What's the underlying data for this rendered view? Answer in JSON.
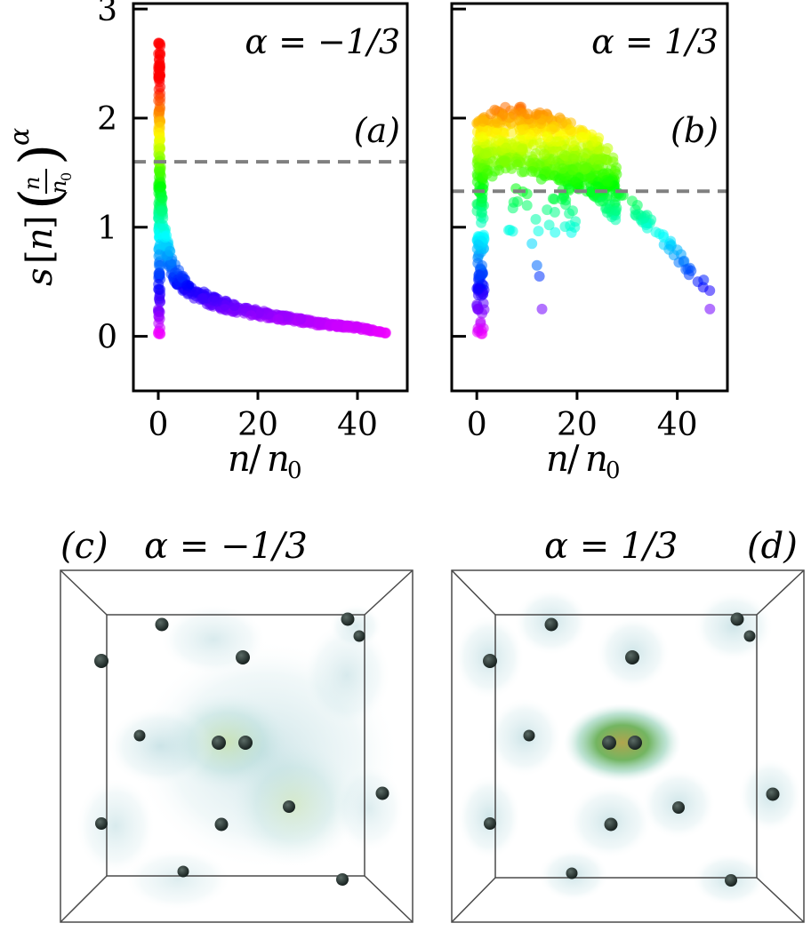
{
  "chart_data": [
    {
      "type": "scatter",
      "panel": "(a)",
      "title": "α = −1/3",
      "alpha": "-1/3",
      "xlabel": "n/n0",
      "ylabel": "s[n] (n/n0)^α",
      "xlim": [
        -5,
        50
      ],
      "ylim": [
        -0.5,
        3.05
      ],
      "xticks": [
        "0",
        "20",
        "40"
      ],
      "xtick_values": [
        0,
        20,
        40
      ],
      "yticks": [
        "0",
        "1",
        "2",
        "3"
      ],
      "ytick_values": [
        0,
        1,
        2,
        3
      ],
      "reference_line": 1.6,
      "colormap": "rainbow (hue by y-value: red high, magenta low)",
      "trends": {
        "spike": {
          "x": [
            0,
            0.4
          ],
          "y": [
            0.02,
            2.7
          ]
        },
        "decay": {
          "x": [
            0.3,
            1,
            2,
            3,
            5,
            8,
            12,
            18,
            25,
            32,
            40,
            46
          ],
          "y": [
            1.5,
            1.0,
            0.75,
            0.6,
            0.48,
            0.38,
            0.3,
            0.23,
            0.17,
            0.12,
            0.08,
            0.03
          ]
        }
      }
    },
    {
      "type": "scatter",
      "panel": "(b)",
      "title": "α = 1/3",
      "alpha": "1/3",
      "xlabel": "n/n0",
      "ylabel": "",
      "xlim": [
        -5,
        50
      ],
      "ylim": [
        -0.5,
        3.05
      ],
      "xticks": [
        "0",
        "20",
        "40"
      ],
      "xtick_values": [
        0,
        20,
        40
      ],
      "yticks": [],
      "reference_line": 1.33,
      "colormap": "rainbow (hue by y-value: red high, magenta low)",
      "trends": {
        "spike": {
          "x": [
            0,
            1.5
          ],
          "y": [
            0.02,
            2.0
          ]
        },
        "upper_band": {
          "x": [
            1,
            5,
            10,
            15,
            20,
            25,
            28
          ],
          "y": [
            2.0,
            2.12,
            2.1,
            2.05,
            1.95,
            1.8,
            1.6
          ]
        },
        "tail": {
          "x": [
            25,
            28,
            32,
            36,
            40,
            44,
            46.5
          ],
          "y": [
            1.45,
            1.35,
            1.15,
            0.95,
            0.75,
            0.5,
            0.44
          ]
        },
        "outliers": {
          "x": [
            11,
            12,
            12.5,
            13,
            46.5
          ],
          "y": [
            0.85,
            0.65,
            0.55,
            0.25,
            0.25
          ]
        }
      }
    }
  ],
  "panel_c": {
    "label": "(c)",
    "title": "α = −1/3"
  },
  "panel_d": {
    "label": "(d)",
    "title": "α = 1/3"
  },
  "ylabel_main": {
    "s": "s",
    "n": "n",
    "n0": "n",
    "sub": "0",
    "alpha": "α"
  },
  "xlabel_main": {
    "n": "n",
    "slash": "/",
    "n0": "n",
    "sub": "0"
  },
  "colors": {
    "axis": "#000000",
    "reference_line": "#808080",
    "atom": "#1e2b28",
    "box_line": "#555555"
  }
}
